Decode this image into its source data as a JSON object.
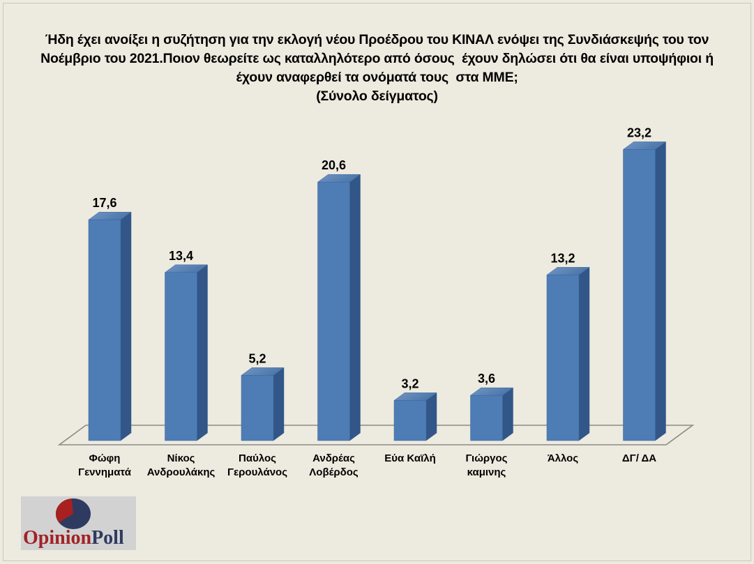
{
  "title_lines": [
    "Ήδη έχει ανοίξει η συζήτηση για την εκλογή νέου Προέδρου του ΚΙΝΑΛ ενόψει της Συνδιάσκεψής του τον",
    "Νοέμβριο του 2021.Ποιον θεωρείτε ως καταλληλότερο από όσους  έχουν δηλώσει ότι θα είναι υποψήφιοι ή",
    "έχουν αναφερθεί τα ονόματά τους  στα ΜΜΕ;"
  ],
  "subtitle": "(Σύνολο δείγματος)",
  "logo": {
    "brand_primary": "Opinion",
    "brand_secondary": "Poll",
    "icon": "pie-chart-icon"
  },
  "colors": {
    "background": "#EDEADF",
    "bar_front": "#4E7DB5",
    "bar_side": "#315687",
    "bar_top_light": "#7296C5",
    "bar_top_dark": "#4B76A9",
    "bar_edge": "#3A6399",
    "floor_line": "#8B8B84",
    "value_label": "#000000",
    "logo_background": "#D2D2D2",
    "logo_red": "#A02225",
    "logo_navy": "#2E3A60",
    "pie_red": "#A8201F",
    "pie_navy": "#2E3A60"
  },
  "chart_data": {
    "type": "bar",
    "style": "3d-column",
    "title": "Ήδη έχει ανοίξει η συζήτηση για την εκλογή νέου Προέδρου του ΚΙΝΑΛ ενόψει της Συνδιάσκεψής του τον Νοέμβριο του 2021.Ποιον θεωρείτε ως καταλληλότερο από όσους  έχουν δηλώσει ότι θα είναι υποψήφιοι ή έχουν αναφερθεί τα ονόματά τους  στα ΜΜΕ;",
    "subtitle": "(Σύνολο δείγματος)",
    "categories": [
      "Φώφη Γεννηματά",
      "Νίκος Ανδρουλάκης",
      "Παύλος Γερουλάνος",
      "Ανδρέας Λοβέρδος",
      "Εύα Καϊλή",
      "Γιώργος καμινης",
      "Άλλος",
      "ΔΓ/ ΔΑ"
    ],
    "values": [
      17.6,
      13.4,
      5.2,
      20.6,
      3.2,
      3.6,
      13.2,
      23.2
    ],
    "value_labels": [
      "17,6",
      "13,4",
      "5,2",
      "20,6",
      "3,2",
      "3,6",
      "13,2",
      "23,2"
    ],
    "xlabel": "",
    "ylabel": "",
    "ylim": [
      0,
      25
    ],
    "grid": false,
    "legend": false,
    "axis_visible": false,
    "decimal_separator": ","
  }
}
